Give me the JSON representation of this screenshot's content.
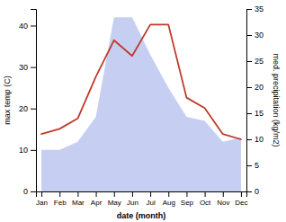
{
  "chart_data": {
    "type": "area",
    "xlabel": "date (month)",
    "ylabel": "max temp (C)",
    "y2label": "med. precipitation (kg/m2)",
    "categories": [
      "Jan",
      "Feb",
      "Mar",
      "Apr",
      "May",
      "Jun",
      "Jul",
      "Aug",
      "Sep",
      "Oct",
      "Nov",
      "Dec"
    ],
    "series": [
      {
        "type": "area",
        "color": "#b3bfee",
        "values": [
          10,
          10,
          12,
          18,
          42,
          42,
          33,
          25,
          18,
          17,
          12,
          13
        ]
      },
      {
        "type": "line",
        "color": "#c0392b",
        "axis": "y2",
        "values": [
          11,
          12,
          14,
          22,
          29,
          26,
          32,
          32,
          18,
          16,
          11,
          10
        ]
      }
    ],
    "ylim": [
      0,
      44
    ],
    "yticks": [
      0,
      10,
      20,
      30,
      40
    ],
    "y2lim": [
      0,
      35
    ],
    "y2ticks": [
      0,
      5,
      10,
      15,
      20,
      25,
      30,
      35
    ]
  }
}
